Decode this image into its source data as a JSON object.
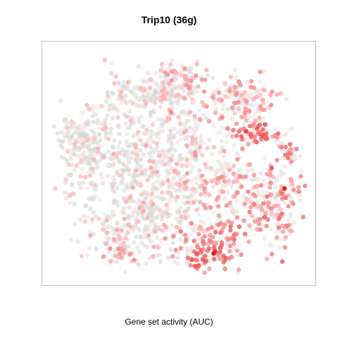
{
  "chart_data": {
    "type": "scatter",
    "title": "Trip10 (36g)",
    "xlabel": "Gene set activity (AUC)",
    "ylabel": "",
    "grid": false,
    "legend": "none",
    "colors": {
      "low": "#d3d3d3",
      "high": "#e00000",
      "frame": "#bdbdbd"
    },
    "xlim": [
      0,
      100
    ],
    "ylim": [
      0,
      100
    ],
    "clusters": [
      {
        "cx": 12,
        "cy": 60,
        "sx": 5,
        "sy": 7,
        "n": 140,
        "auc": 0.03
      },
      {
        "cx": 30,
        "cy": 50,
        "sx": 13,
        "sy": 15,
        "n": 380,
        "auc": 0.06
      },
      {
        "cx": 40,
        "cy": 80,
        "sx": 9,
        "sy": 4,
        "n": 160,
        "auc": 0.08
      },
      {
        "cx": 50,
        "cy": 64,
        "sx": 8,
        "sy": 8,
        "n": 140,
        "auc": 0.12
      },
      {
        "cx": 48,
        "cy": 40,
        "sx": 12,
        "sy": 9,
        "n": 180,
        "auc": 0.12
      },
      {
        "cx": 35,
        "cy": 20,
        "sx": 10,
        "sy": 8,
        "n": 170,
        "auc": 0.14
      },
      {
        "cx": 27,
        "cy": 12,
        "sx": 4,
        "sy": 3,
        "n": 40,
        "auc": 0.3
      },
      {
        "cx": 50,
        "cy": 87,
        "sx": 5,
        "sy": 4,
        "n": 80,
        "auc": 0.25
      },
      {
        "cx": 73,
        "cy": 77,
        "sx": 8,
        "sy": 5,
        "n": 150,
        "auc": 0.3
      },
      {
        "cx": 80,
        "cy": 63,
        "sx": 6,
        "sy": 3,
        "n": 90,
        "auc": 0.48
      },
      {
        "cx": 72,
        "cy": 40,
        "sx": 9,
        "sy": 8,
        "n": 170,
        "auc": 0.25
      },
      {
        "cx": 88,
        "cy": 30,
        "sx": 5,
        "sy": 10,
        "n": 150,
        "auc": 0.38
      },
      {
        "cx": 93,
        "cy": 55,
        "sx": 2,
        "sy": 2,
        "n": 25,
        "auc": 0.5
      },
      {
        "cx": 64,
        "cy": 15,
        "sx": 7,
        "sy": 6,
        "n": 150,
        "auc": 0.45
      },
      {
        "cx": 58,
        "cy": 8,
        "sx": 4,
        "sy": 2,
        "n": 40,
        "auc": 0.5
      }
    ],
    "highlights": [
      {
        "x": 91,
        "y": 39,
        "auc": 1.0
      },
      {
        "x": 63.5,
        "y": 10.5,
        "auc": 1.0
      },
      {
        "x": 64,
        "y": 11.5,
        "auc": 0.85
      },
      {
        "x": 86,
        "y": 48,
        "auc": 0.7
      },
      {
        "x": 76,
        "y": 64,
        "auc": 0.75
      }
    ]
  }
}
